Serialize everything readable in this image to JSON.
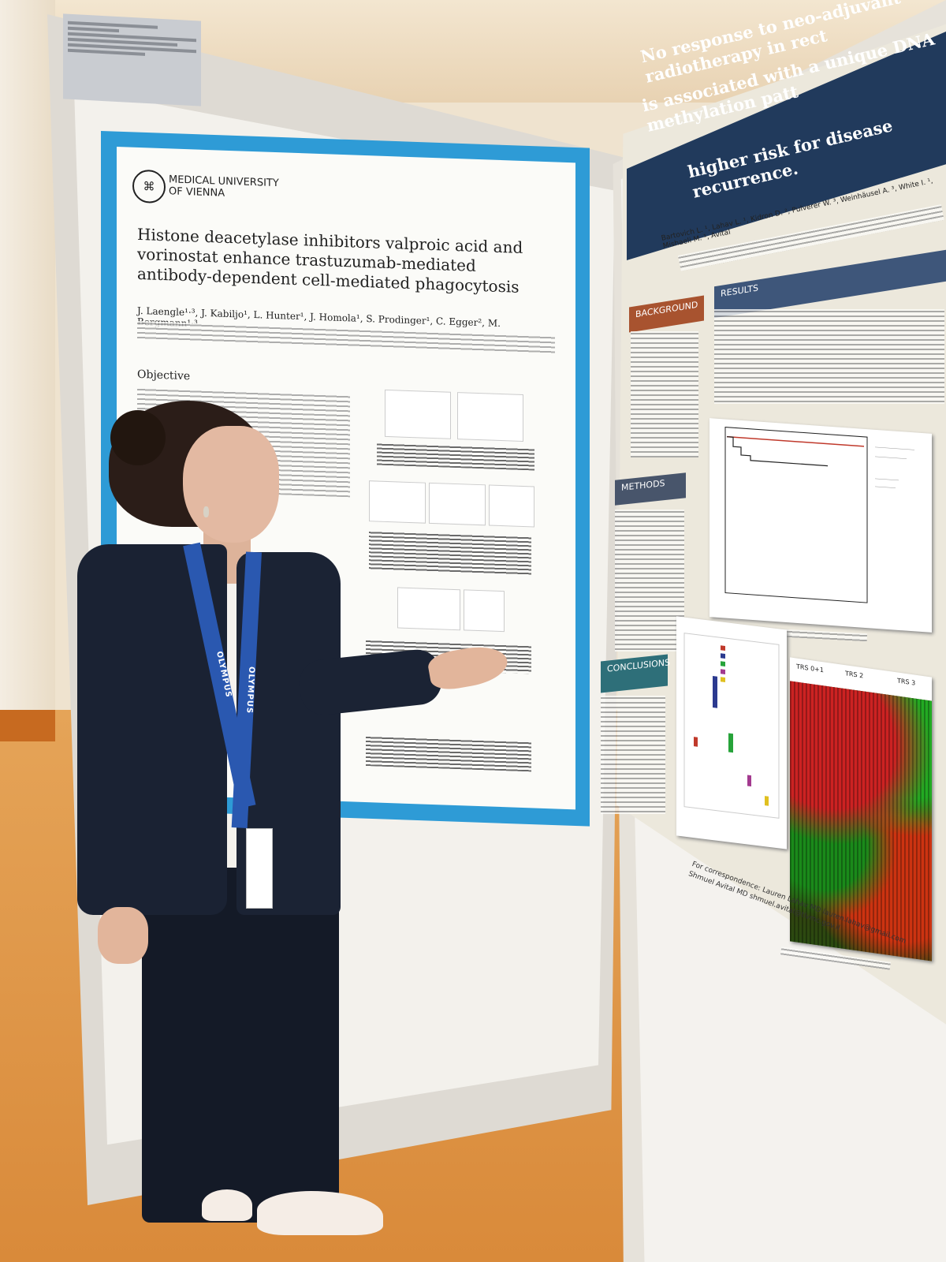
{
  "left_poster": {
    "logo": "MEDICAL UNIVERSITY\nOF VIENNA",
    "title": "Histone deacetylase inhibitors valproic acid and vorinostat enhance trastuzumab-mediated antibody-dependent cell-mediated phagocytosis",
    "authors": "J. Laengle¹·³, J. Kabiljo¹, L. Hunter¹, J. Homola¹, S. Prodinger¹, C. Egger², M. Bergmann¹·³",
    "objective_heading": "Objective"
  },
  "right_poster": {
    "title_line1": "No response to neo-adjuvant radiotherapy in rect",
    "title_line2": "is associated with a unique DNA methylation patt",
    "title_line3": "higher risk for disease recurrence.",
    "authors": "Bartovich L. ¹, Lahav L. ¹, Kidron D. ², Pulverer W. ³, Weinhäusel A. ³, White I. ¹, Mishaeli M. ¹, Avital",
    "sections": {
      "background": "BACKGROUND",
      "results": "RESULTS",
      "methods": "METHODS",
      "conclusions": "CONCLUSIONS"
    },
    "fig3_labels": [
      "TRS 0+1",
      "TRS 2",
      "TRS 3"
    ],
    "correspondence": "For correspondence: Lauren Lahav MD lauren.lahav@gmail.com\nShmuel Avital MD shmuel.avital@tlvmc.gov.il"
  },
  "lanyard_text": "OLYMPUS",
  "colors": {
    "left_poster_border": "#2e9bd6",
    "right_poster_header": "#213a5c",
    "floor": "#d98a3a"
  }
}
